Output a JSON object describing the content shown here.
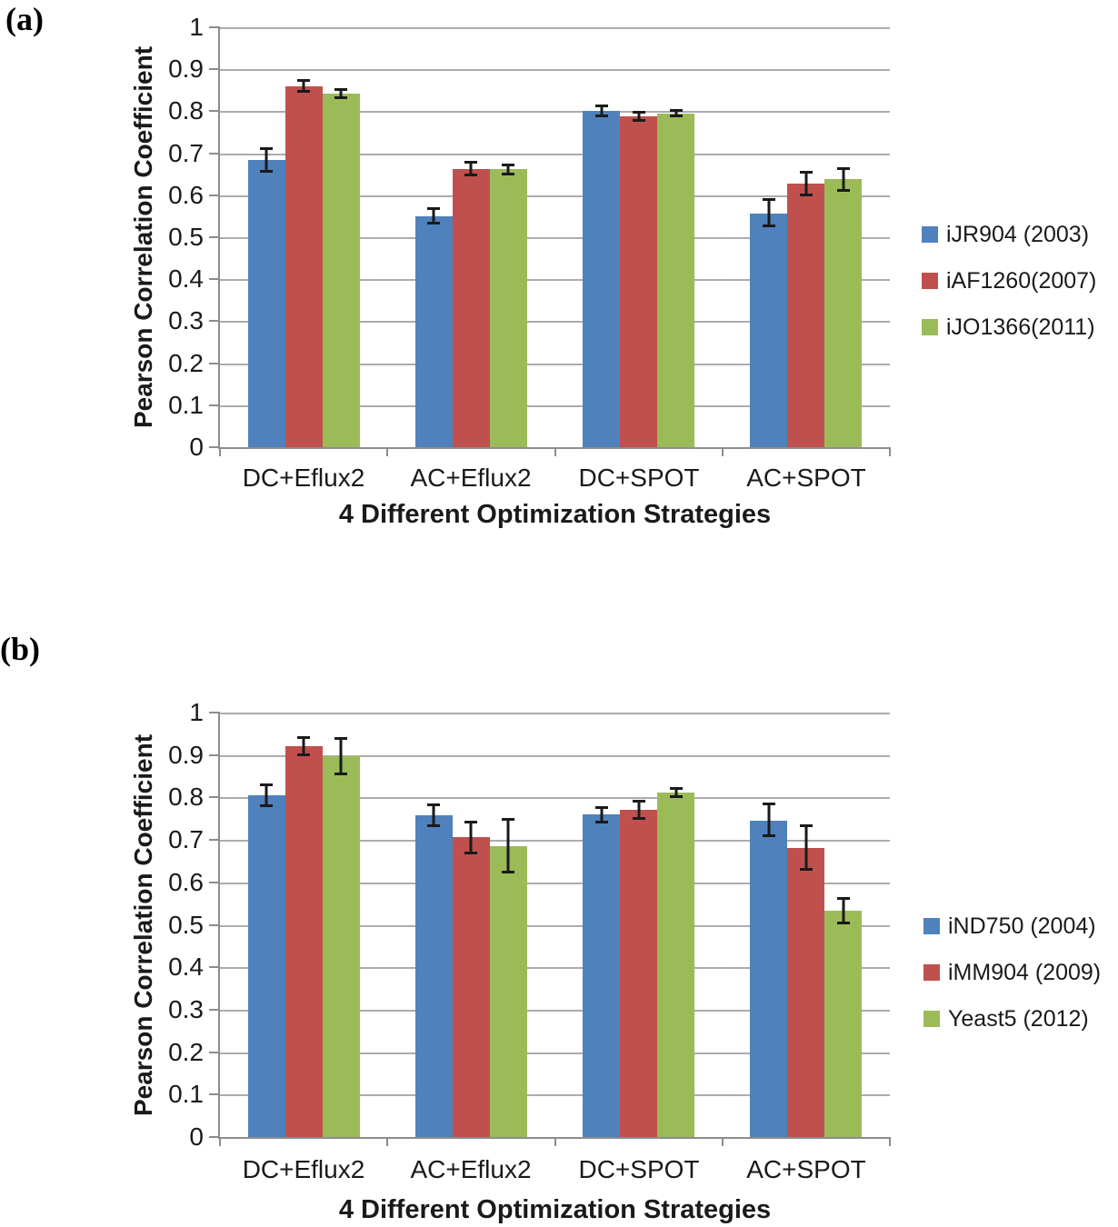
{
  "figure_title": "",
  "chart_data": [
    {
      "type": "bar",
      "panel_label": "(a)",
      "title": "",
      "xlabel": "4 Different Optimization Strategies",
      "ylabel": "Pearson Correlation Coefficient",
      "ylim": [
        0,
        1
      ],
      "ytick_step": 0.1,
      "yticks": [
        "1",
        "0.9",
        "0.8",
        "0.7",
        "0.6",
        "0.5",
        "0.4",
        "0.3",
        "0.2",
        "0.1",
        "0"
      ],
      "grid": true,
      "legend_position": "right",
      "error_bars": true,
      "categories": [
        "DC+Eflux2",
        "AC+Eflux2",
        "DC+SPOT",
        "AC+SPOT"
      ],
      "series": [
        {
          "name": "iJR904 (2003)",
          "color": "#4F81BD",
          "values": [
            0.685,
            0.55,
            0.8,
            0.557
          ],
          "errors": [
            0.03,
            0.021,
            0.015,
            0.035
          ]
        },
        {
          "name": "iAF1260(2007)",
          "color": "#C0504D",
          "values": [
            0.86,
            0.663,
            0.787,
            0.628
          ],
          "errors": [
            0.016,
            0.018,
            0.013,
            0.03
          ]
        },
        {
          "name": "iJO1366(2011)",
          "color": "#9BBB59",
          "values": [
            0.842,
            0.662,
            0.795,
            0.638
          ],
          "errors": [
            0.013,
            0.014,
            0.01,
            0.029
          ]
        }
      ]
    },
    {
      "type": "bar",
      "panel_label": "(b)",
      "title": "",
      "xlabel": "4 Different Optimization Strategies",
      "ylabel": "Pearson Correlation Coefficient",
      "ylim": [
        0,
        1
      ],
      "ytick_step": 0.1,
      "yticks": [
        "1",
        "0.9",
        "0.8",
        "0.7",
        "0.6",
        "0.5",
        "0.4",
        "0.3",
        "0.2",
        "0.1",
        "0"
      ],
      "grid": true,
      "legend_position": "right",
      "error_bars": true,
      "categories": [
        "DC+Eflux2",
        "AC+Eflux2",
        "DC+SPOT",
        "AC+SPOT"
      ],
      "series": [
        {
          "name": "iND750 (2004)",
          "color": "#4F81BD",
          "values": [
            0.805,
            0.757,
            0.76,
            0.746
          ],
          "errors": [
            0.028,
            0.028,
            0.02,
            0.041
          ]
        },
        {
          "name": "iMM904 (2009)",
          "color": "#C0504D",
          "values": [
            0.92,
            0.706,
            0.77,
            0.682
          ],
          "errors": [
            0.024,
            0.04,
            0.024,
            0.055
          ]
        },
        {
          "name": "Yeast5 (2012)",
          "color": "#9BBB59",
          "values": [
            0.897,
            0.686,
            0.812,
            0.533
          ],
          "errors": [
            0.045,
            0.065,
            0.013,
            0.032
          ]
        }
      ]
    }
  ]
}
